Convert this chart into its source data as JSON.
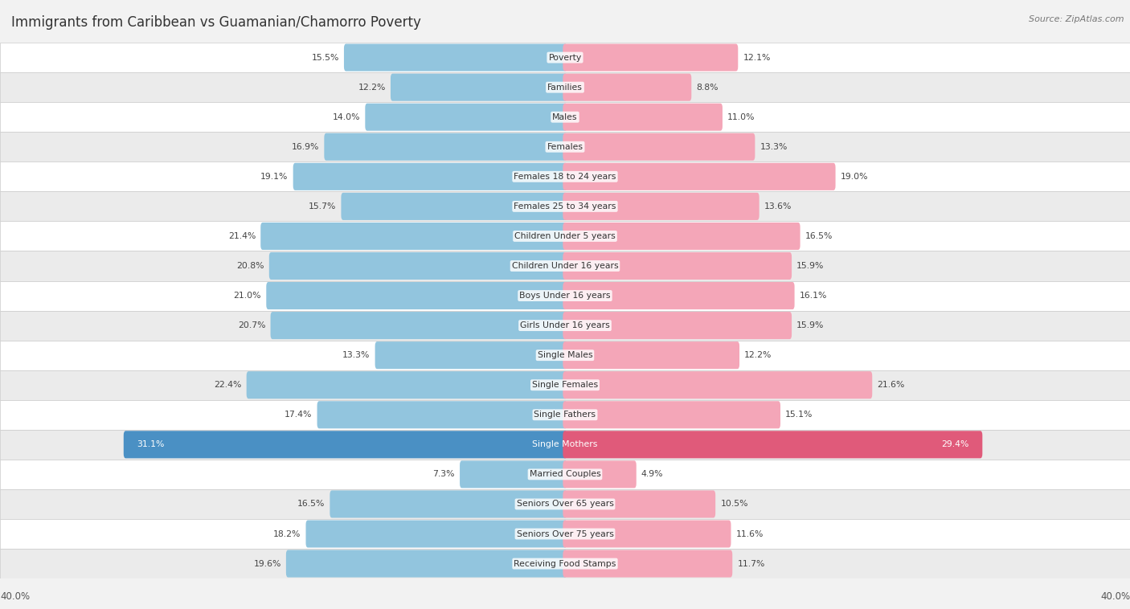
{
  "title": "Immigrants from Caribbean vs Guamanian/Chamorro Poverty",
  "source": "Source: ZipAtlas.com",
  "categories": [
    "Poverty",
    "Families",
    "Males",
    "Females",
    "Females 18 to 24 years",
    "Females 25 to 34 years",
    "Children Under 5 years",
    "Children Under 16 years",
    "Boys Under 16 years",
    "Girls Under 16 years",
    "Single Males",
    "Single Females",
    "Single Fathers",
    "Single Mothers",
    "Married Couples",
    "Seniors Over 65 years",
    "Seniors Over 75 years",
    "Receiving Food Stamps"
  ],
  "left_values": [
    15.5,
    12.2,
    14.0,
    16.9,
    19.1,
    15.7,
    21.4,
    20.8,
    21.0,
    20.7,
    13.3,
    22.4,
    17.4,
    31.1,
    7.3,
    16.5,
    18.2,
    19.6
  ],
  "right_values": [
    12.1,
    8.8,
    11.0,
    13.3,
    19.0,
    13.6,
    16.5,
    15.9,
    16.1,
    15.9,
    12.2,
    21.6,
    15.1,
    29.4,
    4.9,
    10.5,
    11.6,
    11.7
  ],
  "left_color": "#92c5de",
  "right_color": "#f4a6b8",
  "left_highlight_color": "#4a90c4",
  "right_highlight_color": "#e05a7a",
  "highlight_index": 13,
  "axis_max": 40.0,
  "legend_left": "Immigrants from Caribbean",
  "legend_right": "Guamanian/Chamorro",
  "bg_color": "#f2f2f2",
  "row_bg_white": "#ffffff",
  "row_bg_gray": "#ebebeb"
}
